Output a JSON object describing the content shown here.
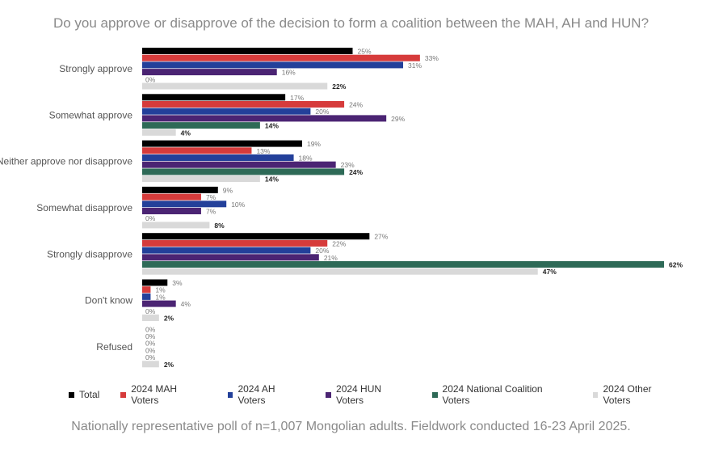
{
  "chart_data": {
    "type": "bar",
    "orientation": "horizontal",
    "title": "Do you approve or disapprove of the decision to form a coalition between the MAH, AH and HUN?",
    "footnote": "Nationally representative poll of n=1,007 Mongolian adults. Fieldwork conducted 16-23 April 2025.",
    "categories": [
      "Strongly approve",
      "Somewhat approve",
      "Neither approve nor disapprove",
      "Somewhat disapprove",
      "Strongly disapprove",
      "Don't know",
      "Refused"
    ],
    "unit": "%",
    "grid": false,
    "legend_position": "bottom",
    "series": [
      {
        "name": "Total",
        "color": "#000000",
        "values": [
          25,
          17,
          19,
          9,
          27,
          3,
          0
        ]
      },
      {
        "name": "2024 MAH Voters",
        "color": "#d63b3b",
        "values": [
          33,
          24,
          13,
          7,
          22,
          1,
          0
        ]
      },
      {
        "name": "2024 AH Voters",
        "color": "#23409a",
        "values": [
          31,
          20,
          18,
          10,
          20,
          1,
          0
        ]
      },
      {
        "name": "2024 HUN Voters",
        "color": "#4b2473",
        "values": [
          16,
          29,
          23,
          7,
          21,
          4,
          0
        ]
      },
      {
        "name": "2024 National Coalition Voters",
        "color": "#2e6a57",
        "values": [
          0,
          14,
          24,
          0,
          62,
          0,
          0
        ]
      },
      {
        "name": "2024 Other Voters",
        "color": "#d9d9d9",
        "values": [
          22,
          4,
          14,
          8,
          47,
          2,
          2
        ]
      }
    ]
  }
}
